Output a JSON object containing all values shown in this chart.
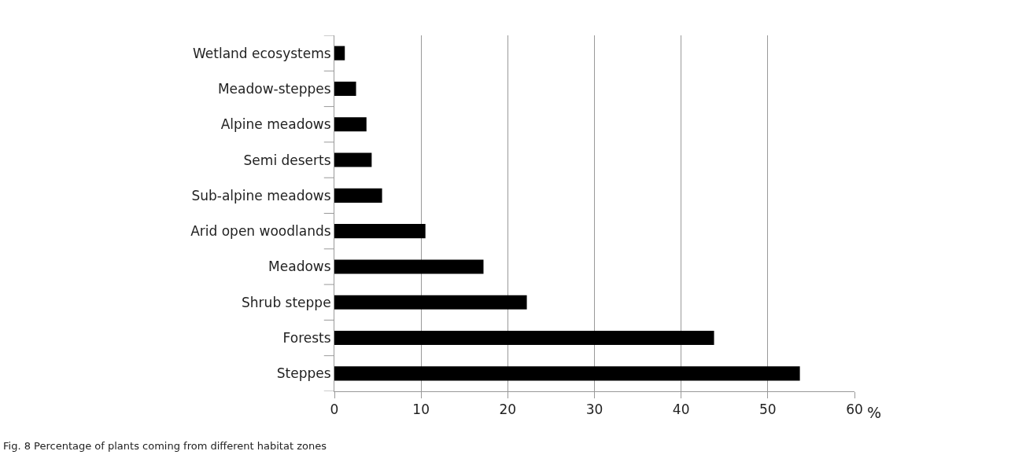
{
  "chart_data": {
    "type": "bar",
    "orientation": "horizontal",
    "categories": [
      "Wetland ecosystems",
      "Meadow-steppes",
      "Alpine meadows",
      "Semi deserts",
      "Sub-alpine meadows",
      "Arid open woodlands",
      "Meadows",
      "Shrub steppe",
      "Forests",
      "Steppes"
    ],
    "values": [
      1.2,
      2.5,
      3.7,
      4.3,
      5.5,
      10.5,
      17.2,
      22.2,
      43.8,
      53.7
    ],
    "color": "#000000",
    "xlabel": "%",
    "xlim": [
      0,
      60
    ],
    "xticks": [
      0,
      10,
      20,
      30,
      40,
      50,
      60
    ],
    "grid": "x",
    "annotations": [
      "Fig. 8 Percentage of plants coming from different habitat zones"
    ]
  }
}
